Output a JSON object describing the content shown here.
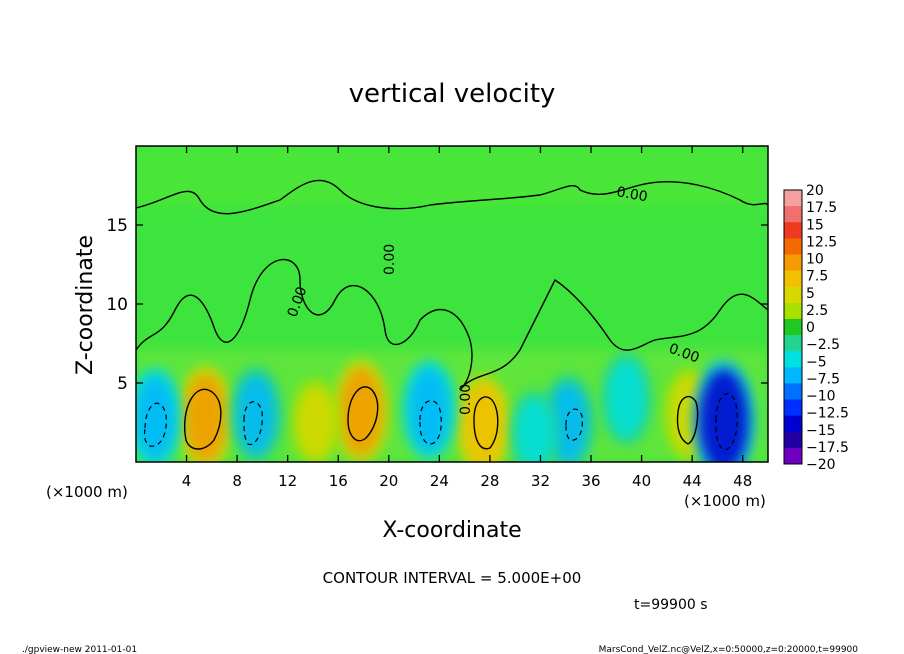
{
  "chart_data": {
    "type": "heatmap",
    "title": "vertical velocity",
    "xlabel": "X-coordinate",
    "ylabel": "Z-coordinate",
    "x_unit": "(×1000 m)",
    "y_unit": "(×1000 m)",
    "xlim": [
      0,
      50
    ],
    "ylim": [
      0,
      20
    ],
    "x_ticks": [
      4,
      8,
      12,
      16,
      20,
      24,
      28,
      32,
      36,
      40,
      44,
      48
    ],
    "y_ticks": [
      5,
      10,
      15
    ],
    "contour_interval_text": "CONTOUR INTERVAL = 5.000E+00",
    "time_text": "t=99900 s",
    "contour_labels": [
      "0.00",
      "0.00",
      "0.00",
      "0.00",
      "0.00"
    ],
    "colorbar": {
      "labels": [
        "20",
        "17.5",
        "15",
        "12.5",
        "10",
        "7.5",
        "5",
        "2.5",
        "0",
        "−2.5",
        "−5",
        "−7.5",
        "−10",
        "−12.5",
        "−15",
        "−17.5",
        "−20"
      ],
      "colors": [
        "#f4a0a0",
        "#f07070",
        "#ee3a20",
        "#f26a00",
        "#f59a00",
        "#f3c000",
        "#d8d800",
        "#a8e000",
        "#22c822",
        "#22d490",
        "#00e0e0",
        "#00b8ff",
        "#0070ff",
        "#0030ff",
        "#0000d0",
        "#2000a0",
        "#7000c0"
      ]
    },
    "updrafts": [
      {
        "x": 5.5,
        "z": 2.8,
        "w": 9
      },
      {
        "x": 17.8,
        "z": 3.2,
        "w": 9
      },
      {
        "x": 27.5,
        "z": 2.3,
        "w": 8
      },
      {
        "x": 43.8,
        "z": 3.0,
        "w": 6
      },
      {
        "x": 14.2,
        "z": 2.5,
        "w": 4
      }
    ],
    "downdrafts": [
      {
        "x": 1.5,
        "z": 2.8,
        "w": -8
      },
      {
        "x": 9.5,
        "z": 3.0,
        "w": -7
      },
      {
        "x": 23.2,
        "z": 3.3,
        "w": -8
      },
      {
        "x": 34.2,
        "z": 2.5,
        "w": -7
      },
      {
        "x": 38.8,
        "z": 4.0,
        "w": -6
      },
      {
        "x": 46.5,
        "z": 2.6,
        "w": -14
      },
      {
        "x": 31.5,
        "z": 1.8,
        "w": -4
      }
    ],
    "footer_left": "./gpview-new  2011-01-01",
    "footer_right": "MarsCond_VelZ.nc@VelZ,x=0:50000,z=0:20000,t=99900"
  }
}
